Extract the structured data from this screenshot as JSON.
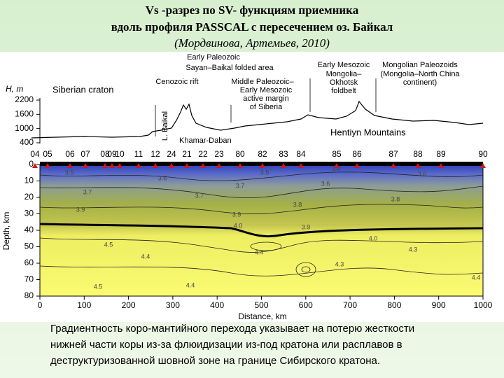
{
  "title": [
    "Vs -разрез по SV- функциям приемника",
    "вдоль профиля PASSCAL  с пересечением оз. Байкал",
    "(Мордвинова,  Артемьев, 2010)"
  ],
  "figure": {
    "annotations": [
      "Early Paleozoic",
      "Sayan–Baikal folded area",
      "Cenozoic rift",
      "Middle Paleozoic–",
      "Early Mesozoic",
      "active margin",
      "of Siberia",
      "Early Mesozoic",
      "Mongolia–",
      "Okhotsk",
      "foldbelt",
      "Mongolian Paleozoids",
      "(Mongolia–North China",
      "continent)",
      "Siberian craton",
      "L. Baikal",
      "Hentiyn Mountains",
      "Khamar-Daban"
    ],
    "topo_axis_label": "H, m",
    "topo_ticks": [
      2200,
      1600,
      1000,
      400
    ],
    "stations": [
      "04",
      "05",
      "06",
      "07",
      "08",
      "09",
      "10",
      "11",
      "12",
      "24",
      "21",
      "22",
      "23",
      "80",
      "82",
      "83",
      "84",
      "85",
      "86",
      "87",
      "88",
      "89",
      "90"
    ],
    "depth_label": "Depth, km",
    "depth_ticks": [
      0,
      10,
      20,
      30,
      40,
      50,
      60,
      70,
      80
    ],
    "distance_label": "Distance, km",
    "distance_ticks": [
      0,
      100,
      200,
      300,
      400,
      500,
      600,
      700,
      800,
      900,
      1000
    ],
    "contour_labels": [
      "3.5",
      "3.6",
      "3.7",
      "3.9",
      "3.7",
      "3.7",
      "3.5",
      "3.4",
      "3.6",
      "3.6",
      "3.8",
      "3.8",
      "3.9",
      "4.0",
      "3.9",
      "4.0",
      "4.5",
      "4.4",
      "4.4",
      "4.3",
      "4.3",
      "4.4",
      "4.5",
      "4.4"
    ]
  },
  "caption": [
    "Градиентность коро-мантийного перехода указывает на потерю жесткости",
    "нижней части коры из-за флюидизации из-под кратона или расплавов в",
    "деструктуризованной шовной зоне на границе Сибирского кратона."
  ]
}
